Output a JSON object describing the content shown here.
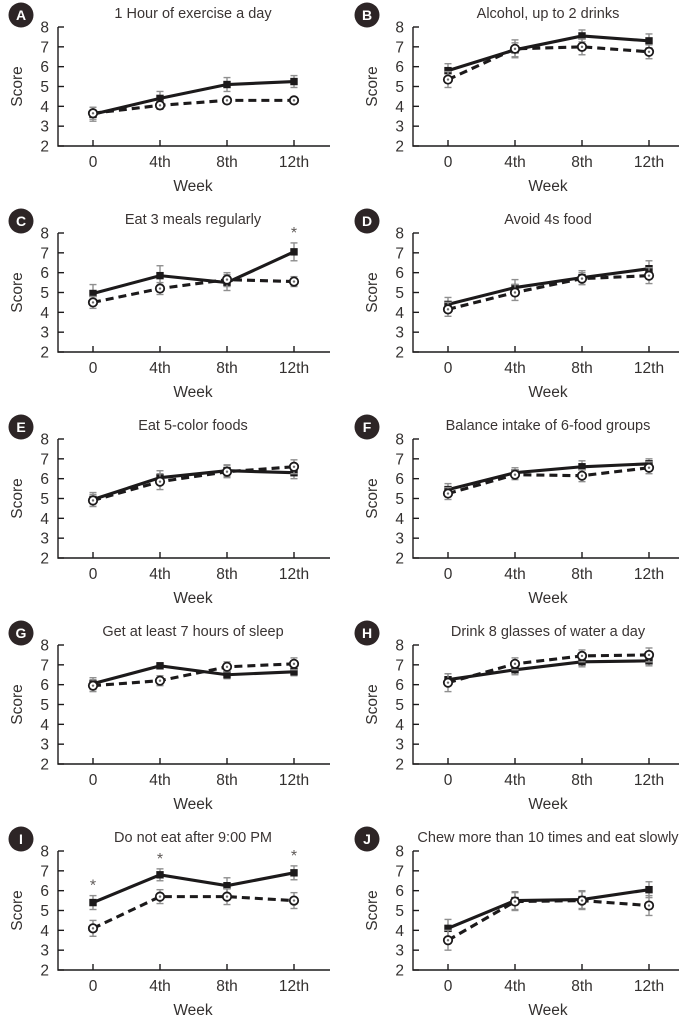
{
  "figure": {
    "ylabel": "Score",
    "xlabel": "Week",
    "categories": [
      "0",
      "4th",
      "8th",
      "12th"
    ],
    "yticks": [
      2,
      3,
      4,
      5,
      6,
      7,
      8
    ],
    "ylim": [
      2,
      8
    ],
    "colors": {
      "line": "#1c1a1b",
      "error_bar": "#8f8f8f",
      "badge_fill": "#2d2526",
      "badge_text": "#ffffff",
      "title_text": "#3a3433",
      "tick_text": "#33302f",
      "asterisk": "#5f5a58",
      "background": "#ffffff"
    },
    "series_legend": [
      {
        "name": "solid",
        "marker": "filled-square",
        "line_style": "solid"
      },
      {
        "name": "dashed",
        "marker": "open-circle",
        "line_style": "dashed"
      }
    ]
  },
  "chart_data": [
    {
      "id": "A",
      "type": "line",
      "title": "1 Hour of exercise a day",
      "x": [
        "0",
        "4th",
        "8th",
        "12th"
      ],
      "series": [
        {
          "name": "solid",
          "values": [
            3.6,
            4.4,
            5.1,
            5.25
          ],
          "err": [
            0.35,
            0.35,
            0.35,
            0.3
          ]
        },
        {
          "name": "dashed",
          "values": [
            3.65,
            4.05,
            4.3,
            4.3
          ],
          "err": [
            0.3,
            0.2,
            0.15,
            0.15
          ]
        }
      ],
      "annotations": []
    },
    {
      "id": "B",
      "type": "line",
      "title": "Alcohol, up to 2 drinks",
      "x": [
        "0",
        "4th",
        "8th",
        "12th"
      ],
      "series": [
        {
          "name": "solid",
          "values": [
            5.8,
            6.85,
            7.55,
            7.3
          ],
          "err": [
            0.35,
            0.35,
            0.3,
            0.35
          ]
        },
        {
          "name": "dashed",
          "values": [
            5.35,
            6.9,
            7.0,
            6.75
          ],
          "err": [
            0.4,
            0.45,
            0.4,
            0.35
          ]
        }
      ],
      "annotations": []
    },
    {
      "id": "C",
      "type": "line",
      "title": "Eat 3 meals regularly",
      "x": [
        "0",
        "4th",
        "8th",
        "12th"
      ],
      "series": [
        {
          "name": "solid",
          "values": [
            4.95,
            5.85,
            5.5,
            7.05
          ],
          "err": [
            0.45,
            0.5,
            0.4,
            0.45
          ]
        },
        {
          "name": "dashed",
          "values": [
            4.5,
            5.2,
            5.65,
            5.55
          ],
          "err": [
            0.3,
            0.3,
            0.35,
            0.25
          ]
        }
      ],
      "annotations": [
        {
          "series": "solid",
          "index": 3,
          "text": "*"
        }
      ]
    },
    {
      "id": "D",
      "type": "line",
      "title": "Avoid 4s food",
      "x": [
        "0",
        "4th",
        "8th",
        "12th"
      ],
      "series": [
        {
          "name": "solid",
          "values": [
            4.4,
            5.25,
            5.75,
            6.2
          ],
          "err": [
            0.35,
            0.4,
            0.35,
            0.4
          ]
        },
        {
          "name": "dashed",
          "values": [
            4.15,
            5.0,
            5.7,
            5.85
          ],
          "err": [
            0.35,
            0.4,
            0.3,
            0.4
          ]
        }
      ],
      "annotations": []
    },
    {
      "id": "E",
      "type": "line",
      "title": "Eat 5-color foods",
      "x": [
        "0",
        "4th",
        "8th",
        "12th"
      ],
      "series": [
        {
          "name": "solid",
          "values": [
            4.95,
            6.05,
            6.4,
            6.3
          ],
          "err": [
            0.35,
            0.35,
            0.3,
            0.3
          ]
        },
        {
          "name": "dashed",
          "values": [
            4.9,
            5.85,
            6.35,
            6.6
          ],
          "err": [
            0.3,
            0.4,
            0.3,
            0.35
          ]
        }
      ],
      "annotations": []
    },
    {
      "id": "F",
      "type": "line",
      "title": "Balance intake of 6-food groups",
      "x": [
        "0",
        "4th",
        "8th",
        "12th"
      ],
      "series": [
        {
          "name": "solid",
          "values": [
            5.45,
            6.3,
            6.6,
            6.75
          ],
          "err": [
            0.3,
            0.25,
            0.3,
            0.25
          ]
        },
        {
          "name": "dashed",
          "values": [
            5.25,
            6.2,
            6.15,
            6.55
          ],
          "err": [
            0.3,
            0.25,
            0.3,
            0.3
          ]
        }
      ],
      "annotations": []
    },
    {
      "id": "G",
      "type": "line",
      "title": "Get at least 7 hours of sleep",
      "x": [
        "0",
        "4th",
        "8th",
        "12th"
      ],
      "series": [
        {
          "name": "solid",
          "values": [
            6.05,
            6.95,
            6.5,
            6.65
          ],
          "err": [
            0.3,
            0.15,
            0.2,
            0.2
          ]
        },
        {
          "name": "dashed",
          "values": [
            5.95,
            6.2,
            6.9,
            7.05
          ],
          "err": [
            0.3,
            0.25,
            0.25,
            0.3
          ]
        }
      ],
      "annotations": []
    },
    {
      "id": "H",
      "type": "line",
      "title": "Drink 8 glasses of water a day",
      "x": [
        "0",
        "4th",
        "8th",
        "12th"
      ],
      "series": [
        {
          "name": "solid",
          "values": [
            6.25,
            6.75,
            7.15,
            7.2
          ],
          "err": [
            0.3,
            0.25,
            0.25,
            0.25
          ]
        },
        {
          "name": "dashed",
          "values": [
            6.1,
            7.05,
            7.45,
            7.5
          ],
          "err": [
            0.45,
            0.3,
            0.3,
            0.35
          ]
        }
      ],
      "annotations": []
    },
    {
      "id": "I",
      "type": "line",
      "title": "Do not eat after 9:00 PM",
      "x": [
        "0",
        "4th",
        "8th",
        "12th"
      ],
      "series": [
        {
          "name": "solid",
          "values": [
            5.4,
            6.8,
            6.25,
            6.9
          ],
          "err": [
            0.35,
            0.3,
            0.4,
            0.35
          ]
        },
        {
          "name": "dashed",
          "values": [
            4.1,
            5.7,
            5.7,
            5.5
          ],
          "err": [
            0.4,
            0.35,
            0.4,
            0.4
          ]
        }
      ],
      "annotations": [
        {
          "series": "solid",
          "index": 0,
          "text": "*"
        },
        {
          "series": "solid",
          "index": 1,
          "text": "*"
        },
        {
          "series": "solid",
          "index": 3,
          "text": "*"
        }
      ]
    },
    {
      "id": "J",
      "type": "line",
      "title": "Chew more than 10 times and eat slowly",
      "x": [
        "0",
        "4th",
        "8th",
        "12th"
      ],
      "series": [
        {
          "name": "solid",
          "values": [
            4.1,
            5.5,
            5.55,
            6.05
          ],
          "err": [
            0.45,
            0.45,
            0.45,
            0.4
          ]
        },
        {
          "name": "dashed",
          "values": [
            3.5,
            5.45,
            5.5,
            5.25
          ],
          "err": [
            0.5,
            0.45,
            0.45,
            0.5
          ]
        }
      ],
      "annotations": []
    }
  ]
}
